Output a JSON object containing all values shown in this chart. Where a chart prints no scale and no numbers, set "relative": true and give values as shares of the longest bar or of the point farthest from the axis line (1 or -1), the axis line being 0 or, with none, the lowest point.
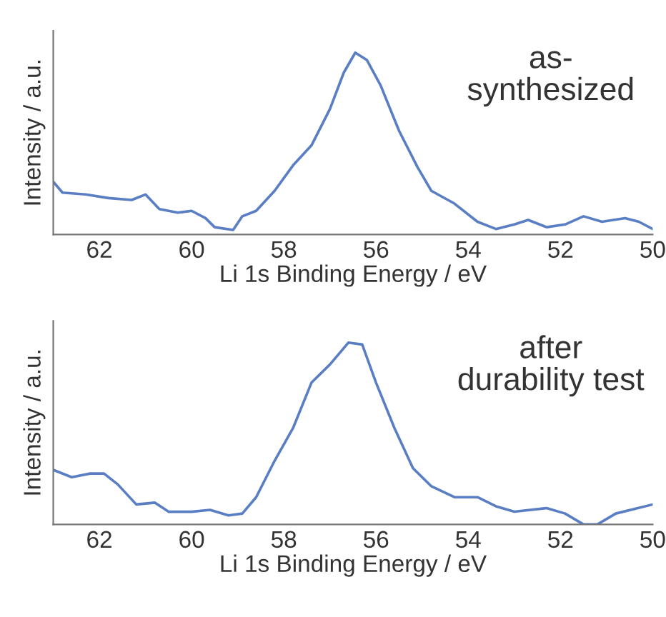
{
  "chart_data": [
    {
      "type": "line",
      "relative": true,
      "xlabel": "Li 1s Binding Energy / eV",
      "ylabel": "Intensity / a.u.",
      "annotations": [
        "as-\nsynthesized"
      ],
      "xlim": [
        63,
        50
      ],
      "xticks": [
        62,
        60,
        58,
        56,
        54,
        52,
        50
      ],
      "grid": false,
      "legend": false,
      "series": [
        {
          "color": "#5a7ec4",
          "x": [
            63,
            62.8,
            62.3,
            61.8,
            61.3,
            61.0,
            60.7,
            60.3,
            60.0,
            59.7,
            59.5,
            59.1,
            58.9,
            58.6,
            58.2,
            57.8,
            57.4,
            57.0,
            56.7,
            56.45,
            56.2,
            55.9,
            55.5,
            55.1,
            54.8,
            54.3,
            53.8,
            53.4,
            53.0,
            52.7,
            52.3,
            51.9,
            51.5,
            51.1,
            50.6,
            50.3,
            50.0
          ],
          "values": [
            0.29,
            0.23,
            0.22,
            0.2,
            0.19,
            0.22,
            0.14,
            0.12,
            0.13,
            0.09,
            0.04,
            0.025,
            0.1,
            0.13,
            0.24,
            0.38,
            0.49,
            0.69,
            0.89,
            1.0,
            0.96,
            0.82,
            0.57,
            0.37,
            0.24,
            0.17,
            0.07,
            0.03,
            0.055,
            0.08,
            0.04,
            0.055,
            0.1,
            0.07,
            0.09,
            0.07,
            0.03
          ]
        }
      ]
    },
    {
      "type": "line",
      "relative": true,
      "xlabel": "Li 1s Binding Energy / eV",
      "ylabel": "Intensity / a.u.",
      "annotations": [
        "after\ndurability test"
      ],
      "xlim": [
        63,
        50
      ],
      "xticks": [
        62,
        60,
        58,
        56,
        54,
        52,
        50
      ],
      "grid": false,
      "legend": false,
      "series": [
        {
          "color": "#5a7ec4",
          "x": [
            63,
            62.6,
            62.2,
            61.9,
            61.6,
            61.2,
            60.8,
            60.5,
            60.0,
            59.6,
            59.2,
            58.9,
            58.6,
            58.2,
            57.8,
            57.4,
            57.0,
            56.6,
            56.3,
            56.0,
            55.6,
            55.2,
            54.8,
            54.3,
            53.8,
            53.4,
            53.0,
            52.3,
            51.9,
            51.5,
            51.2,
            50.8,
            50.0
          ],
          "values": [
            0.3,
            0.26,
            0.28,
            0.28,
            0.22,
            0.11,
            0.12,
            0.07,
            0.07,
            0.08,
            0.05,
            0.06,
            0.15,
            0.35,
            0.53,
            0.78,
            0.88,
            1.0,
            0.99,
            0.78,
            0.53,
            0.31,
            0.21,
            0.15,
            0.15,
            0.1,
            0.07,
            0.09,
            0.06,
            0.0,
            0.0,
            0.06,
            0.11
          ]
        }
      ]
    }
  ]
}
